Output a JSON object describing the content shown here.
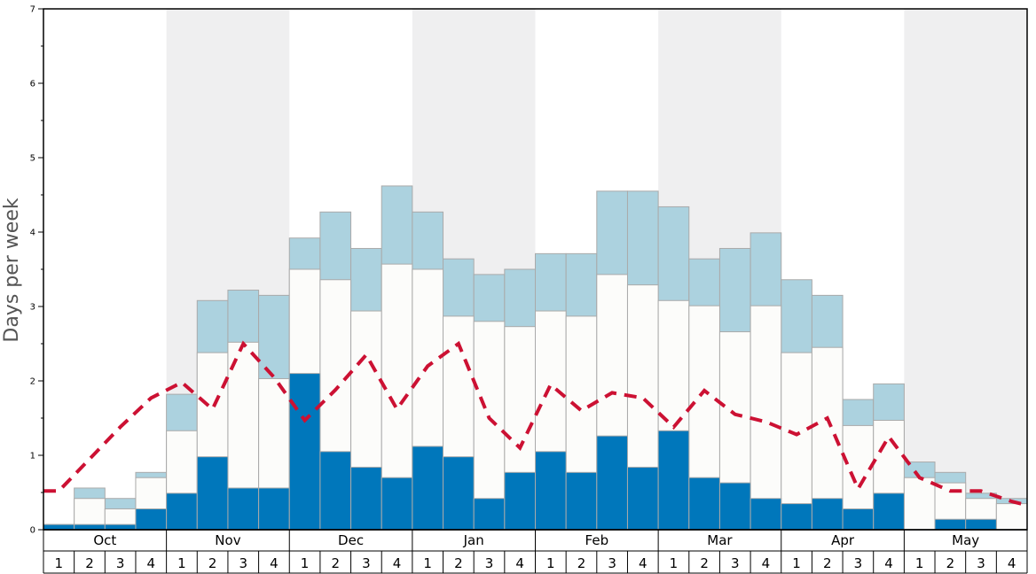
{
  "chart_data": {
    "type": "bar",
    "ylabel": "Days per week",
    "ylim": [
      0,
      7
    ],
    "y_ticks": [
      "0",
      "1",
      "2",
      "3",
      "4",
      "5",
      "6",
      "7"
    ],
    "months": [
      "Oct",
      "Nov",
      "Dec",
      "Jan",
      "Feb",
      "Mar",
      "Apr",
      "May"
    ],
    "weeks_per_month": [
      "1",
      "2",
      "3",
      "4"
    ],
    "shaded_months": [
      "Nov",
      "Jan",
      "Mar",
      "May"
    ],
    "colors": {
      "dark": "#0077bb",
      "white": "#fcfcfa",
      "light": "#acd2df",
      "line": "#cc1133",
      "shade": "#efeff0",
      "bar_edge": "#aaaaaa"
    },
    "series": [
      {
        "values": [
          0.07,
          0.07,
          0.07,
          0.28,
          0.49,
          0.98,
          0.56,
          0.56,
          2.1,
          1.05,
          0.84,
          0.7,
          1.12,
          0.98,
          0.42,
          0.77,
          1.05,
          0.77,
          1.26,
          0.84,
          1.33,
          0.7,
          0.63,
          0.42,
          0.35,
          0.42,
          0.28,
          0.49,
          0.0,
          0.14,
          0.14,
          0.0
        ]
      },
      {
        "values": [
          0.07,
          0.42,
          0.28,
          0.7,
          1.33,
          2.38,
          2.52,
          2.03,
          3.5,
          3.36,
          2.94,
          3.57,
          3.5,
          2.87,
          2.8,
          2.73,
          2.94,
          2.87,
          3.43,
          3.29,
          3.08,
          3.01,
          2.66,
          3.01,
          2.38,
          2.45,
          1.4,
          1.47,
          0.7,
          0.63,
          0.42,
          0.35
        ]
      },
      {
        "values": [
          0.07,
          0.56,
          0.42,
          0.77,
          1.82,
          3.08,
          3.22,
          3.15,
          3.92,
          4.27,
          3.78,
          4.62,
          4.27,
          3.64,
          3.43,
          3.5,
          3.71,
          3.71,
          4.55,
          4.55,
          4.34,
          3.64,
          3.78,
          3.99,
          3.36,
          3.15,
          1.75,
          1.96,
          0.91,
          0.77,
          0.49,
          0.42
        ]
      },
      {
        "values": [
          0.52,
          0.95,
          1.38,
          1.77,
          1.98,
          1.62,
          2.5,
          2.05,
          1.47,
          1.88,
          2.35,
          1.62,
          2.2,
          2.5,
          1.5,
          1.1,
          1.95,
          1.6,
          1.84,
          1.77,
          1.38,
          1.87,
          1.55,
          1.45,
          1.28,
          1.5,
          0.55,
          1.25,
          0.7,
          0.52,
          0.52,
          0.38
        ]
      }
    ]
  }
}
